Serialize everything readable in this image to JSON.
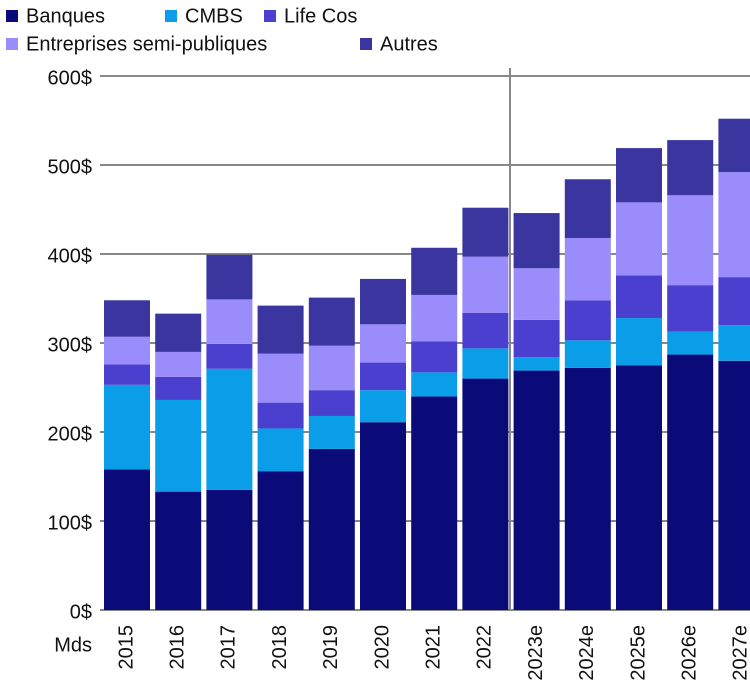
{
  "chart_data": {
    "type": "stacked_bar",
    "categories": [
      "2015",
      "2016",
      "2017",
      "2018",
      "2019",
      "2020",
      "2021",
      "2022",
      "2023e",
      "2024e",
      "2025e",
      "2026e",
      "2027e"
    ],
    "series": [
      {
        "name": "Banques",
        "color": "#0a0a78",
        "values": [
          158,
          133,
          135,
          156,
          181,
          211,
          240,
          260,
          269,
          272,
          275,
          287,
          280
        ]
      },
      {
        "name": "CMBS",
        "color": "#0a9ee8",
        "values": [
          95,
          103,
          136,
          48,
          37,
          36,
          27,
          34,
          15,
          31,
          53,
          26,
          40
        ]
      },
      {
        "name": "Life Cos",
        "color": "#4b3fcf",
        "values": [
          23,
          26,
          28,
          29,
          29,
          31,
          35,
          40,
          42,
          45,
          48,
          52,
          54
        ]
      },
      {
        "name": "Entreprises semi-publiques",
        "color": "#9b8cfb",
        "values": [
          31,
          28,
          50,
          55,
          50,
          43,
          52,
          63,
          58,
          70,
          82,
          101,
          118
        ]
      },
      {
        "name": "Autres",
        "color": "#3b35a0",
        "values": [
          41,
          43,
          50,
          54,
          54,
          51,
          53,
          55,
          62,
          66,
          61,
          62,
          60
        ]
      }
    ],
    "ylim": [
      0,
      600
    ],
    "yticks": [
      {
        "value": 0,
        "label": "0$"
      },
      {
        "value": 100,
        "label": "100$"
      },
      {
        "value": 200,
        "label": "200$"
      },
      {
        "value": 300,
        "label": "300$"
      },
      {
        "value": 400,
        "label": "400$"
      },
      {
        "value": 500,
        "label": "500$"
      },
      {
        "value": 600,
        "label": "600$"
      }
    ],
    "y_unit_label": "Mds",
    "grid": true
  }
}
